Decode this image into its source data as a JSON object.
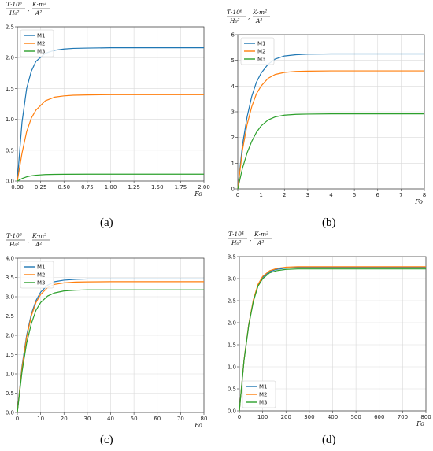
{
  "chart_data": [
    {
      "type": "line",
      "panel_label": "(a)",
      "ylabel_num": "T·10⁶",
      "ylabel_den": "H₀²",
      "ylabel_sep": ",",
      "yunit_num": "K·m²",
      "yunit_den": "A²",
      "xlabel": "Fo",
      "xlim": [
        0,
        2.0
      ],
      "ylim": [
        0,
        2.5
      ],
      "xticks": [
        "0.00",
        "0.25",
        "0.50",
        "0.75",
        "1.00",
        "1.25",
        "1.50",
        "1.75",
        "2.00"
      ],
      "yticks": [
        "0.0",
        "0.5",
        "1.0",
        "1.5",
        "2.0",
        "2.5"
      ],
      "grid": true,
      "legend": "top-left",
      "series": [
        {
          "name": "M1",
          "color": "#1f77b4",
          "x": [
            0,
            0.05,
            0.1,
            0.15,
            0.2,
            0.3,
            0.4,
            0.5,
            0.6,
            0.75,
            1.0,
            1.5,
            2.0
          ],
          "y": [
            0,
            0.95,
            1.5,
            1.78,
            1.94,
            2.07,
            2.12,
            2.14,
            2.15,
            2.155,
            2.16,
            2.16,
            2.16
          ]
        },
        {
          "name": "M2",
          "color": "#ff7f0e",
          "x": [
            0,
            0.05,
            0.1,
            0.15,
            0.2,
            0.3,
            0.4,
            0.5,
            0.6,
            0.75,
            1.0,
            1.5,
            2.0
          ],
          "y": [
            0,
            0.45,
            0.8,
            1.02,
            1.15,
            1.3,
            1.36,
            1.38,
            1.39,
            1.395,
            1.4,
            1.4,
            1.4
          ]
        },
        {
          "name": "M3",
          "color": "#2ca02c",
          "x": [
            0,
            0.05,
            0.1,
            0.15,
            0.2,
            0.3,
            0.4,
            0.5,
            0.75,
            1.0,
            1.5,
            2.0
          ],
          "y": [
            0,
            0.04,
            0.068,
            0.085,
            0.095,
            0.105,
            0.108,
            0.11,
            0.112,
            0.112,
            0.112,
            0.112
          ]
        }
      ]
    },
    {
      "type": "line",
      "panel_label": "(b)",
      "ylabel_num": "T·10⁶",
      "ylabel_den": "H₀²",
      "ylabel_sep": ",",
      "yunit_num": "K·m²",
      "yunit_den": "A²",
      "xlabel": "Fo",
      "xlim": [
        0,
        8
      ],
      "ylim": [
        0,
        6
      ],
      "xticks": [
        "0",
        "1",
        "2",
        "3",
        "4",
        "5",
        "6",
        "7",
        "8"
      ],
      "yticks": [
        "0",
        "1",
        "2",
        "3",
        "4",
        "5",
        "6"
      ],
      "grid": true,
      "legend": "top-left",
      "series": [
        {
          "name": "M1",
          "color": "#1f77b4",
          "x": [
            0,
            0.2,
            0.4,
            0.6,
            0.8,
            1.0,
            1.3,
            1.6,
            2.0,
            2.5,
            3.0,
            4.0,
            6.0,
            8.0
          ],
          "y": [
            0,
            1.7,
            2.8,
            3.6,
            4.15,
            4.5,
            4.85,
            5.05,
            5.17,
            5.22,
            5.24,
            5.25,
            5.25,
            5.25
          ]
        },
        {
          "name": "M2",
          "color": "#ff7f0e",
          "x": [
            0,
            0.2,
            0.4,
            0.6,
            0.8,
            1.0,
            1.3,
            1.6,
            2.0,
            2.5,
            3.0,
            4.0,
            6.0,
            8.0
          ],
          "y": [
            0,
            1.5,
            2.5,
            3.2,
            3.7,
            4.0,
            4.3,
            4.45,
            4.53,
            4.57,
            4.58,
            4.59,
            4.59,
            4.59
          ]
        },
        {
          "name": "M3",
          "color": "#2ca02c",
          "x": [
            0,
            0.2,
            0.4,
            0.6,
            0.8,
            1.0,
            1.3,
            1.6,
            2.0,
            2.5,
            3.0,
            4.0,
            6.0,
            8.0
          ],
          "y": [
            0,
            0.8,
            1.4,
            1.85,
            2.2,
            2.45,
            2.68,
            2.8,
            2.87,
            2.9,
            2.91,
            2.92,
            2.92,
            2.92
          ]
        }
      ]
    },
    {
      "type": "line",
      "panel_label": "(c)",
      "ylabel_num": "T·10⁵",
      "ylabel_den": "H₀²",
      "ylabel_sep": ",",
      "yunit_num": "K·m²",
      "yunit_den": "A²",
      "xlabel": "Fo",
      "xlim": [
        0,
        80
      ],
      "ylim": [
        0,
        4.0
      ],
      "xticks": [
        "0",
        "10",
        "20",
        "30",
        "40",
        "50",
        "60",
        "70",
        "80"
      ],
      "yticks": [
        "0.0",
        "0.5",
        "1.0",
        "1.5",
        "2.0",
        "2.5",
        "3.0",
        "3.5",
        "4.0"
      ],
      "grid": true,
      "legend": "top-left",
      "series": [
        {
          "name": "M1",
          "color": "#1f77b4",
          "x": [
            0,
            2,
            4,
            6,
            8,
            10,
            13,
            16,
            20,
            25,
            30,
            40,
            60,
            80
          ],
          "y": [
            0,
            1.2,
            2.0,
            2.55,
            2.9,
            3.12,
            3.3,
            3.39,
            3.43,
            3.45,
            3.46,
            3.46,
            3.46,
            3.46
          ]
        },
        {
          "name": "M2",
          "color": "#ff7f0e",
          "x": [
            0,
            2,
            4,
            6,
            8,
            10,
            13,
            16,
            20,
            25,
            30,
            40,
            60,
            80
          ],
          "y": [
            0,
            1.15,
            1.95,
            2.5,
            2.85,
            3.06,
            3.24,
            3.32,
            3.36,
            3.38,
            3.385,
            3.39,
            3.39,
            3.39
          ]
        },
        {
          "name": "M3",
          "color": "#2ca02c",
          "x": [
            0,
            2,
            4,
            6,
            8,
            10,
            13,
            16,
            20,
            25,
            30,
            40,
            60,
            80
          ],
          "y": [
            0,
            1.05,
            1.8,
            2.3,
            2.65,
            2.85,
            3.02,
            3.1,
            3.15,
            3.17,
            3.18,
            3.18,
            3.18,
            3.18
          ]
        }
      ]
    },
    {
      "type": "line",
      "panel_label": "(d)",
      "ylabel_num": "T·10⁴",
      "ylabel_den": "H₀²",
      "ylabel_sep": ",",
      "yunit_num": "K·m²",
      "yunit_den": "A²",
      "xlabel": "Fo",
      "xlim": [
        0,
        800
      ],
      "ylim": [
        0,
        3.5
      ],
      "xticks": [
        "0",
        "100",
        "200",
        "300",
        "400",
        "500",
        "600",
        "700",
        "800"
      ],
      "yticks": [
        "0.0",
        "0.5",
        "1.0",
        "1.5",
        "2.0",
        "2.5",
        "3.0",
        "3.5"
      ],
      "grid": true,
      "legend": "bottom-left",
      "series": [
        {
          "name": "M1",
          "color": "#1f77b4",
          "x": [
            0,
            20,
            40,
            60,
            80,
            100,
            130,
            160,
            200,
            250,
            300,
            400,
            600,
            800
          ],
          "y": [
            0,
            1.15,
            1.95,
            2.5,
            2.85,
            3.03,
            3.16,
            3.21,
            3.24,
            3.25,
            3.25,
            3.25,
            3.25,
            3.25
          ]
        },
        {
          "name": "M2",
          "color": "#ff7f0e",
          "x": [
            0,
            20,
            40,
            60,
            80,
            100,
            130,
            160,
            200,
            250,
            300,
            400,
            600,
            800
          ],
          "y": [
            0,
            1.15,
            1.95,
            2.52,
            2.87,
            3.05,
            3.18,
            3.23,
            3.26,
            3.27,
            3.27,
            3.27,
            3.27,
            3.27
          ]
        },
        {
          "name": "M3",
          "color": "#2ca02c",
          "x": [
            0,
            20,
            40,
            60,
            80,
            100,
            130,
            160,
            200,
            250,
            300,
            400,
            600,
            800
          ],
          "y": [
            0,
            1.14,
            1.93,
            2.48,
            2.83,
            3.0,
            3.13,
            3.18,
            3.21,
            3.22,
            3.22,
            3.22,
            3.22,
            3.22
          ]
        }
      ]
    }
  ]
}
